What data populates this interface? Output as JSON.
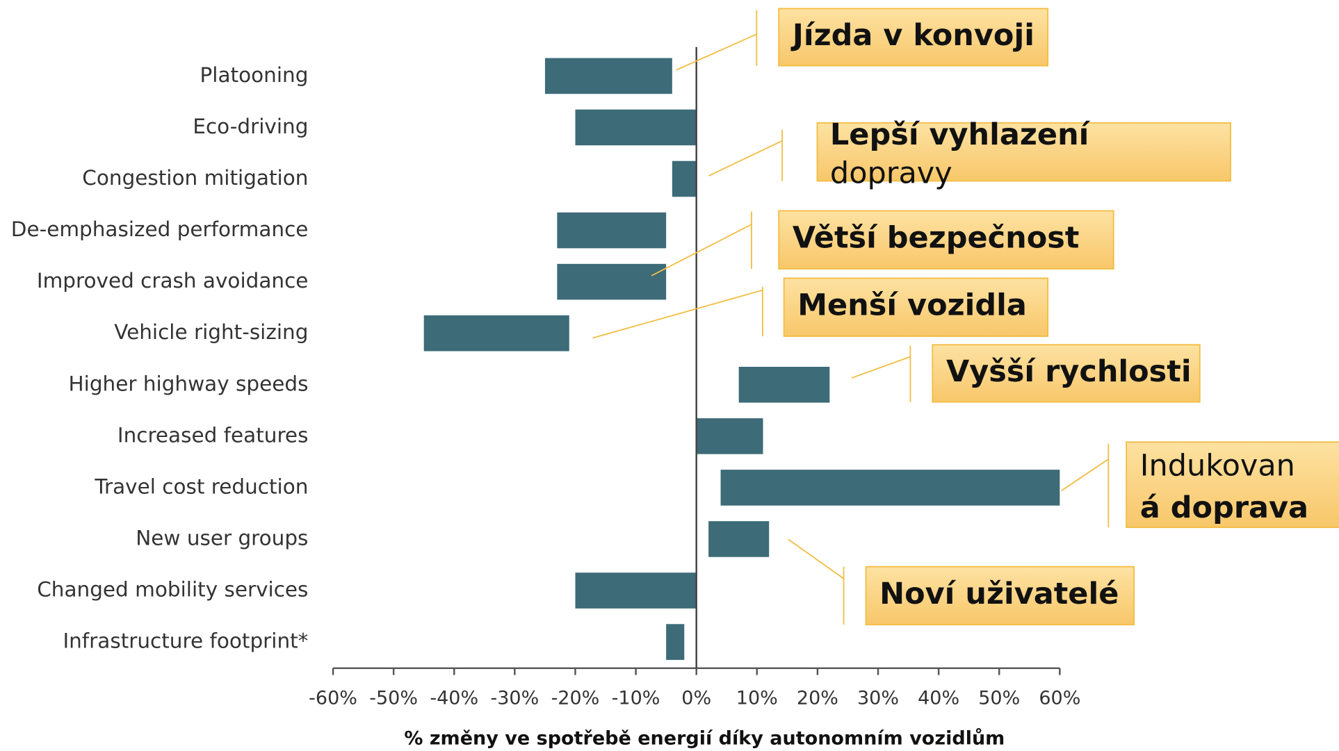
{
  "chart_data": {
    "type": "range-bar",
    "categories": [
      "Platooning",
      "Eco-driving",
      "Congestion mitigation",
      "De-emphasized performance",
      "Improved crash avoidance",
      "Vehicle right-sizing",
      "Higher highway speeds",
      "Increased features",
      "Travel cost reduction",
      "New user groups",
      "Changed mobility services",
      "Infrastructure footprint*"
    ],
    "values": [
      [
        -25,
        -4
      ],
      [
        -20,
        0
      ],
      [
        -4,
        0
      ],
      [
        -23,
        -5
      ],
      [
        -23,
        -5
      ],
      [
        -45,
        -21
      ],
      [
        7,
        22
      ],
      [
        0,
        11
      ],
      [
        4,
        60
      ],
      [
        2,
        12
      ],
      [
        -20,
        0
      ],
      [
        -5,
        -2
      ]
    ],
    "color": "#3d6b78",
    "xlim": [
      -60,
      60
    ],
    "xticks": [
      {
        "value": -60,
        "label": "-60%"
      },
      {
        "value": -50,
        "label": "-50%"
      },
      {
        "value": -40,
        "label": "-40%"
      },
      {
        "value": -30,
        "label": "-30%"
      },
      {
        "value": -20,
        "label": "-20%"
      },
      {
        "value": -10,
        "label": "-10%"
      },
      {
        "value": 0,
        "label": "0%"
      },
      {
        "value": 10,
        "label": "10%"
      },
      {
        "value": 20,
        "label": "20%"
      },
      {
        "value": 30,
        "label": "30%"
      },
      {
        "value": 40,
        "label": "40%"
      },
      {
        "value": 50,
        "label": "50%"
      },
      {
        "value": 60,
        "label": "60%"
      }
    ],
    "xlabel": "% změny ve spotřebě energií díky autonomním vozidlům",
    "annotations": [
      {
        "lines": [
          "Jízda v konvoji"
        ]
      },
      {
        "lines": [
          "Lepší vyhlazení",
          "dopravy"
        ]
      },
      {
        "lines": [
          "Větší bezpečnost"
        ]
      },
      {
        "lines": [
          "Menší vozidla"
        ]
      },
      {
        "lines": [
          "Vyšší rychlosti"
        ]
      },
      {
        "lines": [
          "Indukovan",
          "á doprava"
        ]
      },
      {
        "lines": [
          "Noví uživatelé"
        ]
      }
    ]
  }
}
